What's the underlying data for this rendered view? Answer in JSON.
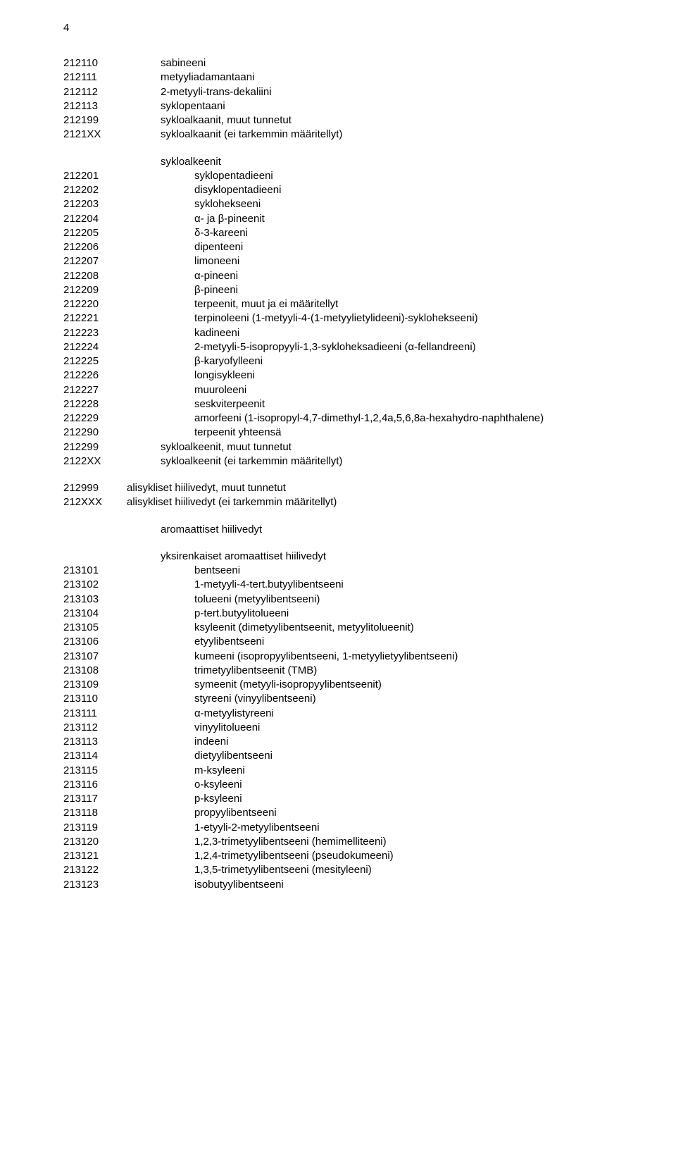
{
  "page_number": "4",
  "colors": {
    "text": "#000000",
    "background": "#ffffff"
  },
  "typography": {
    "family": "Arial, Helvetica, sans-serif",
    "size_pt": 11,
    "weight": "normal"
  },
  "blocks": [
    {
      "rows": [
        {
          "code": "212110",
          "indent": 1,
          "text": "sabineeni"
        },
        {
          "code": "212111",
          "indent": 1,
          "text": "metyyliadamantaani"
        },
        {
          "code": "212112",
          "indent": 1,
          "text": "2-metyyli-trans-dekaliini"
        },
        {
          "code": "212113",
          "indent": 1,
          "text": "syklopentaani"
        },
        {
          "code": "212199",
          "indent": 1,
          "text": "sykloalkaanit, muut tunnetut"
        },
        {
          "code": "2121XX",
          "indent": 1,
          "text": "sykloalkaanit (ei tarkemmin määritellyt)"
        }
      ]
    },
    {
      "rows": [
        {
          "code": "",
          "indent": 1,
          "text": "sykloalkeenit"
        },
        {
          "code": "212201",
          "indent": 2,
          "text": "syklopentadieeni"
        },
        {
          "code": "212202",
          "indent": 2,
          "text": "disyklopentadieeni"
        },
        {
          "code": "212203",
          "indent": 2,
          "text": "syklohekseeni"
        },
        {
          "code": "212204",
          "indent": 2,
          "text": "α- ja β-pineenit"
        },
        {
          "code": "212205",
          "indent": 2,
          "text": "δ-3-kareeni"
        },
        {
          "code": "212206",
          "indent": 2,
          "text": "dipenteeni"
        },
        {
          "code": "212207",
          "indent": 2,
          "text": "limoneeni"
        },
        {
          "code": "212208",
          "indent": 2,
          "text": "α-pineeni"
        },
        {
          "code": "212209",
          "indent": 2,
          "text": "β-pineeni"
        },
        {
          "code": "212220",
          "indent": 2,
          "text": "terpeenit, muut ja ei määritellyt"
        },
        {
          "code": "212221",
          "indent": 2,
          "text": "terpinoleeni (1-metyyli-4-(1-metyylietylideeni)-syklohekseeni)"
        },
        {
          "code": "212223",
          "indent": 2,
          "text": "kadineeni"
        },
        {
          "code": "212224",
          "indent": 2,
          "text": "2-metyyli-5-isopropyyli-1,3-sykloheksadieeni (α-fellandreeni)"
        },
        {
          "code": "212225",
          "indent": 2,
          "text": "β-karyofylleeni"
        },
        {
          "code": "212226",
          "indent": 2,
          "text": "longisykleeni"
        },
        {
          "code": "212227",
          "indent": 2,
          "text": "muuroleeni"
        },
        {
          "code": "212228",
          "indent": 2,
          "text": "seskviterpeenit"
        },
        {
          "code": "212229",
          "indent": 2,
          "text": "amorfeeni (1-isopropyl-4,7-dimethyl-1,2,4a,5,6,8a-hexahydro-naphthalene)"
        },
        {
          "code": "212290",
          "indent": 2,
          "text": "terpeenit yhteensä"
        },
        {
          "code": "212299",
          "indent": 1,
          "text": "sykloalkeenit, muut tunnetut"
        },
        {
          "code": "2122XX",
          "indent": 1,
          "text": "sykloalkeenit (ei tarkemmin määritellyt)"
        }
      ]
    },
    {
      "rows": [
        {
          "code": "212999",
          "indent": 0,
          "text": "alisykliset hiilivedyt, muut tunnetut"
        },
        {
          "code": "212XXX",
          "indent": 0,
          "text": "alisykliset hiilivedyt (ei tarkemmin määritellyt)"
        }
      ]
    },
    {
      "rows": [
        {
          "code": "",
          "indent": 1,
          "text": "aromaattiset hiilivedyt"
        }
      ]
    },
    {
      "rows": [
        {
          "code": "",
          "indent": 1,
          "text": "yksirenkaiset aromaattiset hiilivedyt"
        },
        {
          "code": "213101",
          "indent": 2,
          "text": "bentseeni"
        },
        {
          "code": "213102",
          "indent": 2,
          "text": "1-metyyli-4-tert.butyylibentseeni"
        },
        {
          "code": "213103",
          "indent": 2,
          "text": "tolueeni (metyylibentseeni)"
        },
        {
          "code": "213104",
          "indent": 2,
          "text": "p-tert.butyylitolueeni"
        },
        {
          "code": "213105",
          "indent": 2,
          "text": "ksyleenit (dimetyylibentseenit, metyylitolueenit)"
        },
        {
          "code": "213106",
          "indent": 2,
          "text": "etyylibentseeni"
        },
        {
          "code": "213107",
          "indent": 2,
          "text": "kumeeni (isopropyylibentseeni, 1-metyylietyylibentseeni)"
        },
        {
          "code": "213108",
          "indent": 2,
          "text": "trimetyylibentseenit (TMB)"
        },
        {
          "code": "213109",
          "indent": 2,
          "text": "symeenit (metyyli-isopropyylibentseenit)"
        },
        {
          "code": "213110",
          "indent": 2,
          "text": "styreeni (vinyylibentseeni)"
        },
        {
          "code": "213111",
          "indent": 2,
          "text": "α-metyylistyreeni"
        },
        {
          "code": "213112",
          "indent": 2,
          "text": "vinyylitolueeni"
        },
        {
          "code": "213113",
          "indent": 2,
          "text": "indeeni"
        },
        {
          "code": "213114",
          "indent": 2,
          "text": "dietyylibentseeni"
        },
        {
          "code": "213115",
          "indent": 2,
          "text": "m-ksyleeni"
        },
        {
          "code": "213116",
          "indent": 2,
          "text": "o-ksyleeni"
        },
        {
          "code": "213117",
          "indent": 2,
          "text": "p-ksyleeni"
        },
        {
          "code": "213118",
          "indent": 2,
          "text": "propyylibentseeni"
        },
        {
          "code": "213119",
          "indent": 2,
          "text": "1-etyyli-2-metyylibentseeni"
        },
        {
          "code": "213120",
          "indent": 2,
          "text": "1,2,3-trimetyylibentseeni (hemimelliteeni)"
        },
        {
          "code": "213121",
          "indent": 2,
          "text": "1,2,4-trimetyylibentseeni (pseudokumeeni)"
        },
        {
          "code": "213122",
          "indent": 2,
          "text": "1,3,5-trimetyylibentseeni (mesityleeni)"
        },
        {
          "code": "213123",
          "indent": 2,
          "text": "isobutyylibentseeni"
        }
      ]
    }
  ]
}
